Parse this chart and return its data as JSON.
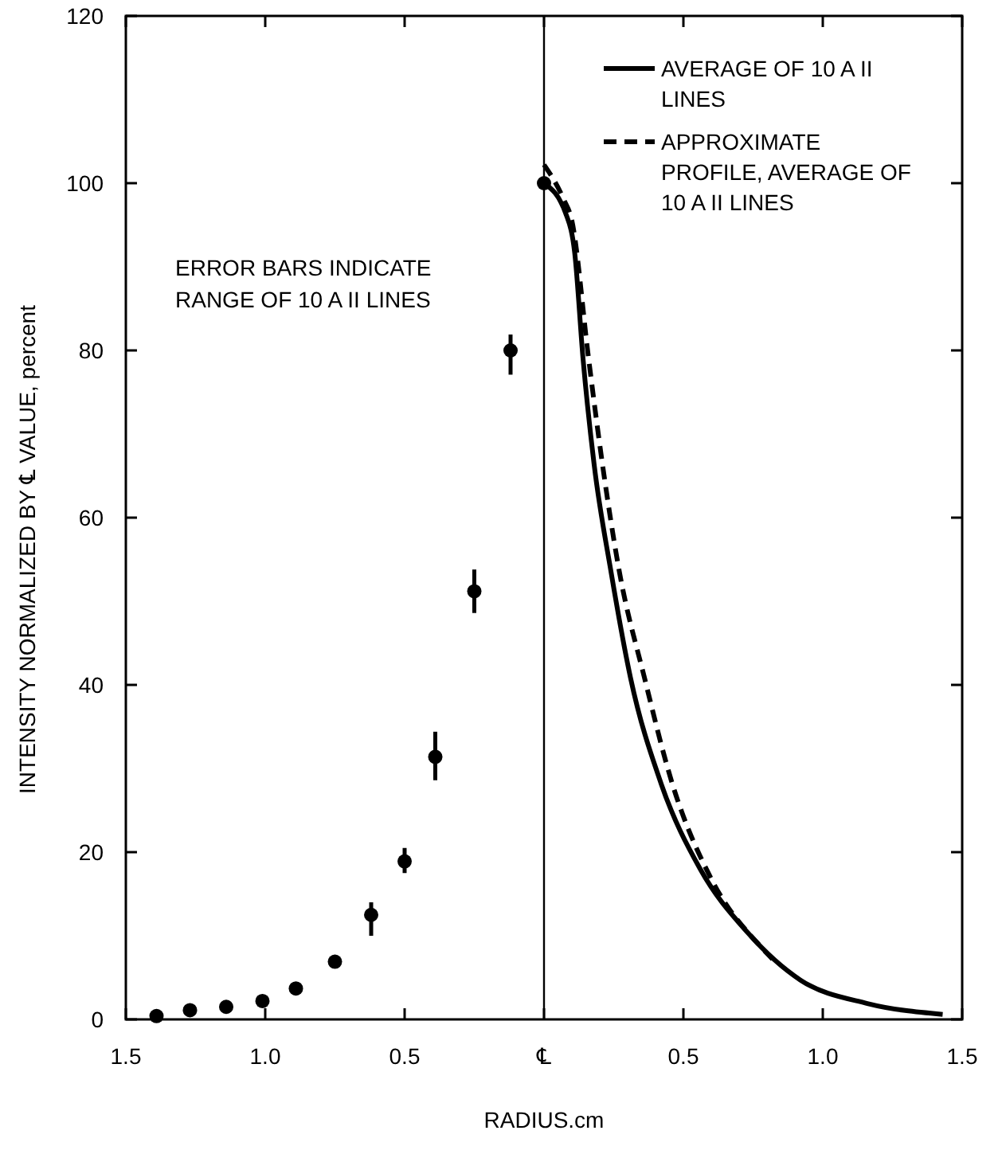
{
  "chart_data": {
    "type": "line",
    "xlabel": "RADIUS.cm",
    "ylabel": "INTENSITY NORMALIZED BY ℄ VALUE, percent",
    "xlim": [
      -1.5,
      1.5
    ],
    "ylim": [
      0,
      120
    ],
    "xticks": [
      {
        "value": -1.5,
        "label": "1.5"
      },
      {
        "value": -1,
        "label": "1.0"
      },
      {
        "value": -0.5,
        "label": "0.5"
      },
      {
        "value": 0,
        "label": "℄"
      },
      {
        "value": 0.5,
        "label": "0.5"
      },
      {
        "value": 1,
        "label": "1.0"
      },
      {
        "value": 1.5,
        "label": "1.5"
      }
    ],
    "yticks": [
      0,
      20,
      40,
      60,
      80,
      100,
      120
    ],
    "legend": "top right",
    "ref_lines": [
      {
        "axis": "x",
        "value": 0,
        "color": "#000000"
      }
    ],
    "annotations": [
      "ERROR BARS INDICATE RANGE OF 10 A II LINES"
    ],
    "series": [
      {
        "type": "scatter",
        "color": "#000000",
        "marker": "circle",
        "x": [
          -1.39,
          -1.27,
          -1.14,
          -1.01,
          -0.89,
          -0.75,
          -0.62,
          -0.5,
          -0.39,
          -0.25,
          -0.12,
          0
        ],
        "values": [
          0.4,
          1.1,
          1.5,
          2.2,
          3.7,
          6.9,
          12.5,
          18.9,
          31.4,
          51.2,
          80,
          100
        ],
        "errors": [
          null,
          null,
          null,
          null,
          null,
          null,
          [
            10,
            14
          ],
          [
            17.5,
            20.5
          ],
          [
            28.6,
            34.4
          ],
          [
            48.6,
            53.8
          ],
          [
            77.1,
            81.9
          ],
          null
        ]
      },
      {
        "name": "AVERAGE OF 10 A II LINES",
        "color": "#000000",
        "line_style": "solid",
        "x": [
          0,
          0.08,
          0.11,
          0.14,
          0.18,
          0.24,
          0.31,
          0.42,
          0.56,
          0.73,
          0.92,
          1.16,
          1.43
        ],
        "values": [
          100,
          96.2,
          91.7,
          79,
          66.3,
          53.6,
          40.9,
          28.2,
          18,
          10.4,
          4.7,
          1.9,
          0.6
        ]
      },
      {
        "name": "APPROXIMATE PROFILE, AVERAGE OF 10 A II LINES",
        "color": "#000000",
        "line_style": "dashed",
        "x": [
          0,
          0.07,
          0.1,
          0.16,
          0.21,
          0.27,
          0.36,
          0.46,
          0.6,
          0.78,
          0.82
        ],
        "values": [
          102.2,
          98.1,
          95.5,
          79,
          66.3,
          53.6,
          40.9,
          28.2,
          16.8,
          8.6,
          7.2
        ]
      }
    ]
  }
}
